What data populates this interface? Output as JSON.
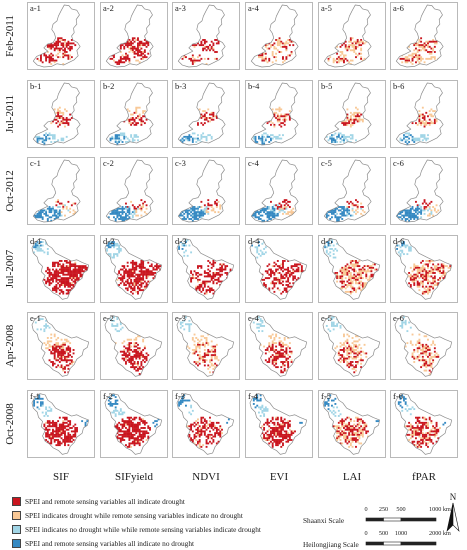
{
  "rows": [
    {
      "label": "Feb-2011",
      "panels": [
        "a-1",
        "a-2",
        "a-3",
        "a-4",
        "a-5",
        "a-6"
      ]
    },
    {
      "label": "Jul-2011",
      "panels": [
        "b-1",
        "b-2",
        "b-3",
        "b-4",
        "b-5",
        "b-6"
      ]
    },
    {
      "label": "Oct-2012",
      "panels": [
        "c-1",
        "c-2",
        "c-3",
        "c-4",
        "c-5",
        "c-6"
      ]
    },
    {
      "label": "Jul-2007",
      "panels": [
        "d-1",
        "d-2",
        "d-3",
        "d-4",
        "d-5",
        "d-6"
      ]
    },
    {
      "label": "Apr-2008",
      "panels": [
        "e-1",
        "e-2",
        "e-3",
        "e-4",
        "e-5",
        "e-6"
      ]
    },
    {
      "label": "Oct-2008",
      "panels": [
        "f-1",
        "f-2",
        "f-3",
        "f-4",
        "f-5",
        "f-6"
      ]
    }
  ],
  "columns": [
    "SIF",
    "SIFyield",
    "NDVI",
    "EVI",
    "LAI",
    "fPAR"
  ],
  "legend": [
    {
      "text": "SPEI and remote sensing variables all indicate drought",
      "color": "#c9151e"
    },
    {
      "text": "SPEI indicates drought while remote sensing variables indicate no drought",
      "color": "#f8c896"
    },
    {
      "text": "SPEI indicates no drought while while remote sensing variables indicate drought",
      "color": "#a1d5e6"
    },
    {
      "text": "SPEI and remote sensing variables all indicate no drought",
      "color": "#3589c2"
    }
  ],
  "scales": [
    {
      "label": "Shaanxi Scale",
      "ticks": [
        "0",
        "250",
        "500",
        "1000 km"
      ]
    },
    {
      "label": "Heilongjiang Scale",
      "ticks": [
        "0",
        "500",
        "1000",
        "2000 km"
      ]
    }
  ],
  "north_arrow": {
    "label": "N"
  }
}
